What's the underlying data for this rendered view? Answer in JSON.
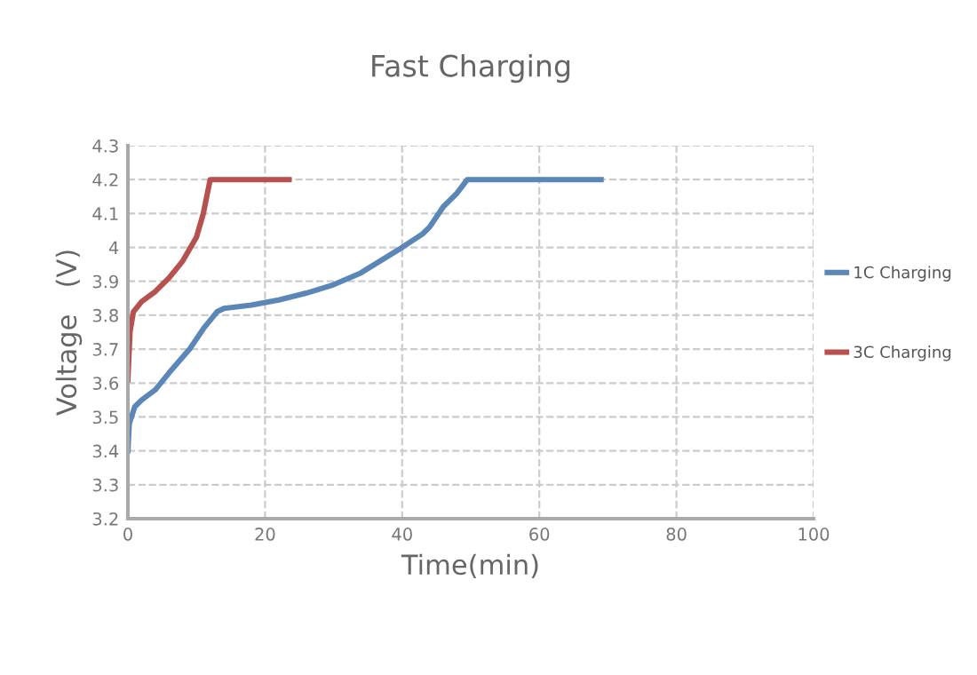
{
  "chart_data": {
    "type": "line",
    "title": "Fast Charging",
    "xlabel": "Time(min)",
    "ylabel": "Voltage   (V)",
    "xlim": [
      0,
      100
    ],
    "xticks": [
      0,
      20,
      40,
      60,
      80,
      100
    ],
    "ylim": [
      3.2,
      4.3
    ],
    "yticks": [
      3.2,
      3.3,
      3.4,
      3.5,
      3.6,
      3.7,
      3.8,
      3.9,
      4,
      4.1,
      4.2,
      4.3
    ],
    "grid": true,
    "legend": "right",
    "line_style": "solid",
    "series": [
      {
        "name": "1C Charging",
        "color": "#5b86b8",
        "x": [
          0,
          0.2,
          1,
          2,
          4,
          6,
          9,
          11,
          13,
          14,
          18,
          22,
          26,
          30,
          34,
          38,
          40,
          43,
          44,
          46,
          48,
          49.5,
          69
        ],
        "values": [
          3.4,
          3.48,
          3.53,
          3.55,
          3.58,
          3.63,
          3.7,
          3.76,
          3.81,
          3.82,
          3.83,
          3.845,
          3.865,
          3.89,
          3.925,
          3.975,
          4.0,
          4.04,
          4.06,
          4.12,
          4.16,
          4.2,
          4.2
        ]
      },
      {
        "name": "3C Charging",
        "color": "#b5514f",
        "x": [
          0,
          0.3,
          0.8,
          2,
          4,
          6,
          8,
          10,
          11,
          12,
          23.5
        ],
        "values": [
          3.61,
          3.75,
          3.81,
          3.84,
          3.87,
          3.91,
          3.96,
          4.03,
          4.1,
          4.2,
          4.2
        ]
      }
    ]
  }
}
